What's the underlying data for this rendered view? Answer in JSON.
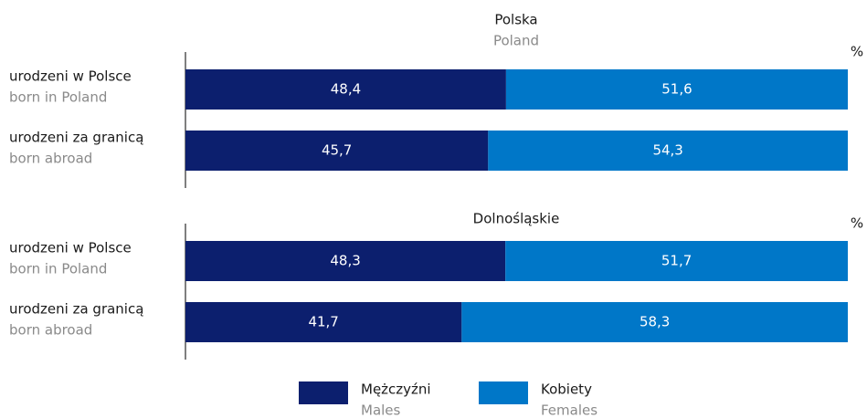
{
  "chart_data": [
    {
      "type": "stacked-bar-horizontal",
      "title": "Polska",
      "subtitle": "Poland",
      "unit": "%",
      "categories": [
        "urodzeni w Polsce",
        "urodzeni za granicą"
      ],
      "categories_en": [
        "born in Poland",
        "born abroad"
      ],
      "xlim": [
        0,
        100
      ],
      "series": [
        {
          "name": "Mężczyźni",
          "name_en": "Males",
          "color": "#0c1f6e",
          "values": [
            48.4,
            45.7
          ],
          "value_labels": [
            "48,4",
            "45,7"
          ]
        },
        {
          "name": "Kobiety",
          "name_en": "Females",
          "color": "#0077c8",
          "values": [
            51.6,
            54.3
          ],
          "value_labels": [
            "51,6",
            "54,3"
          ]
        }
      ]
    },
    {
      "type": "stacked-bar-horizontal",
      "title": "Dolnośląskie",
      "unit": "%",
      "categories": [
        "urodzeni w Polsce",
        "urodzeni za granicą"
      ],
      "categories_en": [
        "born in Poland",
        "born abroad"
      ],
      "xlim": [
        0,
        100
      ],
      "series": [
        {
          "name": "Mężczyźni",
          "name_en": "Males",
          "color": "#0c1f6e",
          "values": [
            48.3,
            41.7
          ],
          "value_labels": [
            "48,3",
            "41,7"
          ]
        },
        {
          "name": "Kobiety",
          "name_en": "Females",
          "color": "#0077c8",
          "values": [
            51.7,
            58.3
          ],
          "value_labels": [
            "51,7",
            "58,3"
          ]
        }
      ]
    }
  ]
}
